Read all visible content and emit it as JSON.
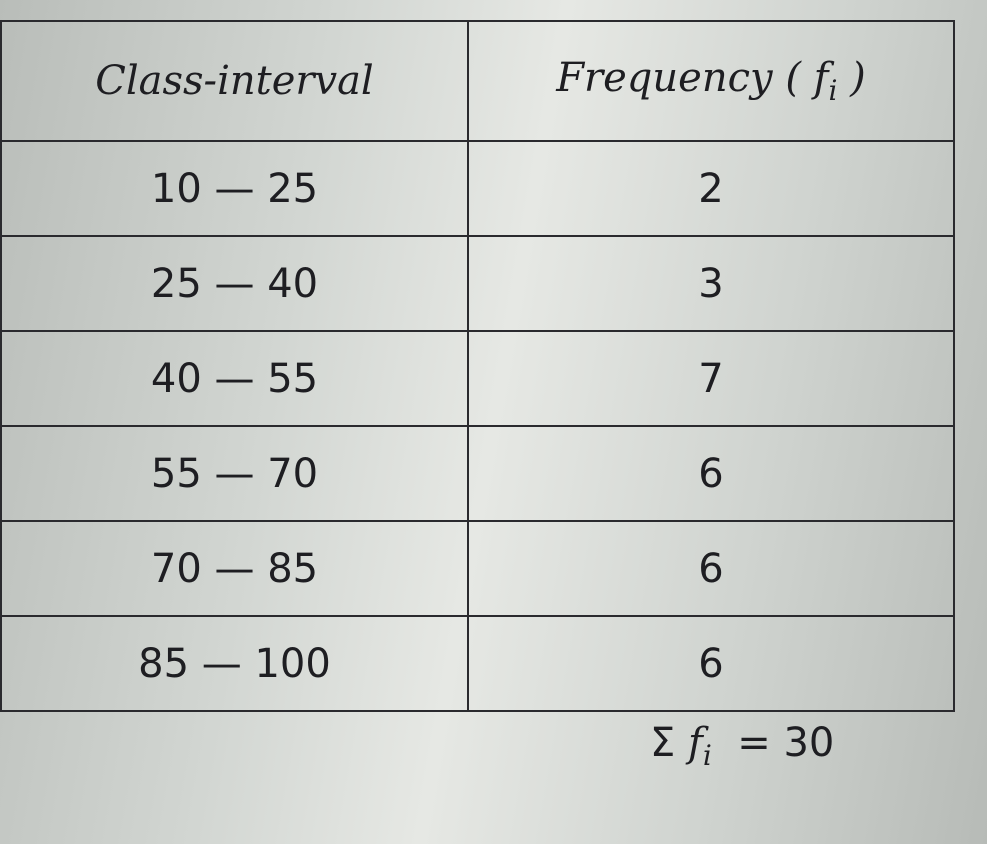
{
  "table": {
    "header": {
      "class_interval": "Class-interval",
      "frequency": "Frequency (",
      "symbol": "f",
      "subscript": "i",
      "close": ")"
    },
    "rows": [
      [
        "10 — 25",
        2
      ],
      [
        "25 — 40",
        3
      ],
      [
        "40 — 55",
        7
      ],
      [
        "55 — 70",
        6
      ],
      [
        "70 — 85",
        6
      ],
      [
        "85 — 100",
        6
      ]
    ],
    "footer": {
      "sigma": "Σ",
      "symbol": "f",
      "subscript": "i",
      "equals": "=",
      "total": 30
    }
  }
}
